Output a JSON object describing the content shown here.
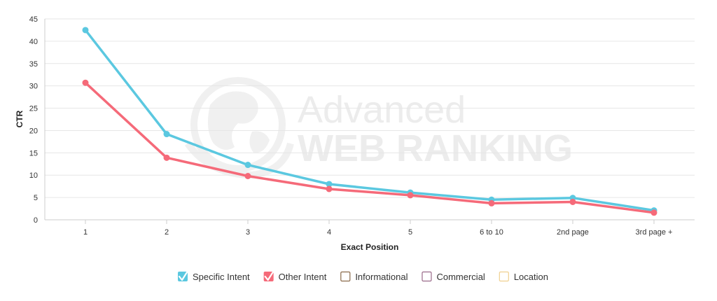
{
  "chart_data": {
    "type": "line",
    "categories": [
      "1",
      "2",
      "3",
      "4",
      "5",
      "6 to 10",
      "2nd page",
      "3rd page +"
    ],
    "series": [
      {
        "name": "Specific Intent",
        "color": "#5bc8e0",
        "values": [
          42.5,
          19.2,
          12.3,
          8.0,
          6.1,
          4.5,
          4.9,
          2.1
        ]
      },
      {
        "name": "Other Intent",
        "color": "#f56a79",
        "values": [
          30.7,
          13.9,
          9.8,
          6.9,
          5.5,
          3.7,
          4.0,
          1.6
        ]
      }
    ],
    "inactive_series": [
      {
        "name": "Informational",
        "color": "#8a6a4a"
      },
      {
        "name": "Commercial",
        "color": "#9a6a8a"
      },
      {
        "name": "Location",
        "color": "#f0d090"
      }
    ],
    "xlabel": "Exact Position",
    "ylabel": "CTR",
    "ylim": [
      0,
      45
    ],
    "yticks": [
      0,
      5,
      10,
      15,
      20,
      25,
      30,
      35,
      40,
      45
    ],
    "grid": true,
    "legend_position": "bottom-center"
  },
  "watermark": {
    "line1": "Advanced",
    "line2": "WEB RANKING"
  }
}
